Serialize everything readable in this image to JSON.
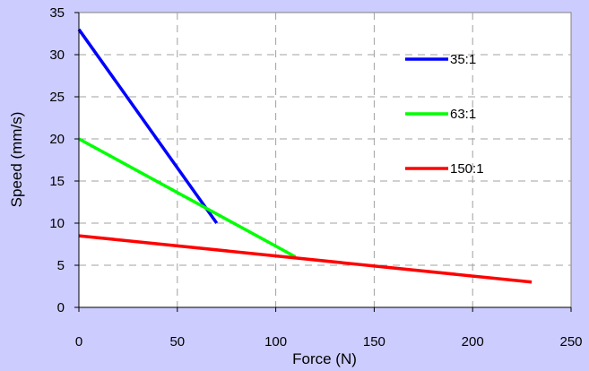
{
  "chart_data": {
    "type": "line",
    "title": "",
    "xlabel": "Force (N)",
    "ylabel": "Speed (mm/s)",
    "xlim": [
      0,
      250
    ],
    "ylim": [
      0,
      35
    ],
    "xticks": [
      0,
      50,
      100,
      150,
      200,
      250
    ],
    "yticks": [
      0,
      5,
      10,
      15,
      20,
      25,
      30,
      35
    ],
    "grid": true,
    "legend": "right",
    "series": [
      {
        "name": "35:1",
        "color": "#0000ff",
        "x": [
          0,
          70
        ],
        "y": [
          33,
          10
        ]
      },
      {
        "name": "63:1",
        "color": "#00ff00",
        "x": [
          0,
          110
        ],
        "y": [
          20,
          6
        ]
      },
      {
        "name": "150:1",
        "color": "#ff0000",
        "x": [
          0,
          230
        ],
        "y": [
          8.5,
          3
        ]
      }
    ]
  }
}
